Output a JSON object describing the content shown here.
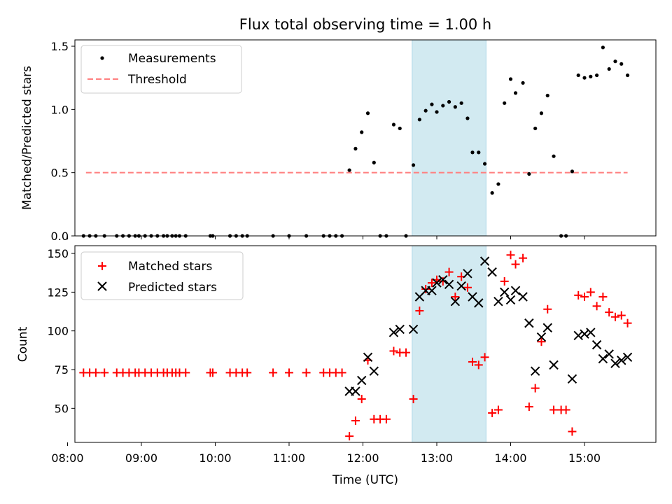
{
  "title": "Flux total observing time = 1.00 h",
  "colors": {
    "measurement": "#000000",
    "threshold": "#ff7f7f",
    "matched": "#ff0000",
    "predicted": "#000000",
    "highlight": "#add8e6"
  },
  "chart_data": [
    {
      "type": "scatter",
      "ylabel": "Matched/Predicted stars",
      "ylim": [
        0,
        1.55
      ],
      "xlim": [
        "08:06",
        "15:58"
      ],
      "yticks": [
        "0.0",
        "0.5",
        "1.0",
        "1.5"
      ],
      "legend": {
        "placement": "top-left",
        "entries": [
          "Measurements",
          "Threshold"
        ]
      },
      "highlight_span": [
        "12:40",
        "13:40"
      ],
      "threshold": {
        "value": 0.5,
        "x_range": [
          "08:15",
          "15:35"
        ]
      },
      "series": [
        {
          "name": "Measurements",
          "points": [
            [
              "08:13",
              0
            ],
            [
              "08:18",
              0
            ],
            [
              "08:23",
              0
            ],
            [
              "08:30",
              0
            ],
            [
              "08:40",
              0
            ],
            [
              "08:45",
              0
            ],
            [
              "08:50",
              0
            ],
            [
              "08:55",
              0
            ],
            [
              "08:58",
              0
            ],
            [
              "09:03",
              0
            ],
            [
              "09:08",
              0
            ],
            [
              "09:13",
              0
            ],
            [
              "09:18",
              0
            ],
            [
              "09:21",
              0
            ],
            [
              "09:25",
              0
            ],
            [
              "09:28",
              0
            ],
            [
              "09:31",
              0
            ],
            [
              "09:36",
              0
            ],
            [
              "09:56",
              0
            ],
            [
              "09:58",
              0
            ],
            [
              "10:12",
              0
            ],
            [
              "10:17",
              0
            ],
            [
              "10:22",
              0
            ],
            [
              "10:26",
              0
            ],
            [
              "10:47",
              0
            ],
            [
              "11:00",
              0
            ],
            [
              "11:14",
              0
            ],
            [
              "11:28",
              0
            ],
            [
              "11:33",
              0
            ],
            [
              "11:38",
              0
            ],
            [
              "11:43",
              0
            ],
            [
              "11:49",
              0.52
            ],
            [
              "11:54",
              0.69
            ],
            [
              "11:59",
              0.82
            ],
            [
              "12:04",
              0.97
            ],
            [
              "12:09",
              0.58
            ],
            [
              "12:14",
              0
            ],
            [
              "12:19",
              0
            ],
            [
              "12:25",
              0.88
            ],
            [
              "12:30",
              0.85
            ],
            [
              "12:35",
              0
            ],
            [
              "12:41",
              0.56
            ],
            [
              "12:46",
              0.92
            ],
            [
              "12:51",
              0.99
            ],
            [
              "12:56",
              1.04
            ],
            [
              "13:00",
              0.98
            ],
            [
              "13:05",
              1.03
            ],
            [
              "13:10",
              1.06
            ],
            [
              "13:15",
              1.02
            ],
            [
              "13:20",
              1.05
            ],
            [
              "13:25",
              0.93
            ],
            [
              "13:29",
              0.66
            ],
            [
              "13:34",
              0.66
            ],
            [
              "13:39",
              0.57
            ],
            [
              "13:45",
              0.34
            ],
            [
              "13:50",
              0.41
            ],
            [
              "13:55",
              1.05
            ],
            [
              "14:00",
              1.24
            ],
            [
              "14:04",
              1.13
            ],
            [
              "14:10",
              1.21
            ],
            [
              "14:15",
              0.49
            ],
            [
              "14:20",
              0.85
            ],
            [
              "14:25",
              0.97
            ],
            [
              "14:30",
              1.11
            ],
            [
              "14:35",
              0.63
            ],
            [
              "14:41",
              0
            ],
            [
              "14:45",
              0
            ],
            [
              "14:50",
              0.51
            ],
            [
              "14:55",
              1.27
            ],
            [
              "15:00",
              1.25
            ],
            [
              "15:05",
              1.26
            ],
            [
              "15:10",
              1.27
            ],
            [
              "15:15",
              1.49
            ],
            [
              "15:20",
              1.32
            ],
            [
              "15:25",
              1.38
            ],
            [
              "15:30",
              1.36
            ],
            [
              "15:35",
              1.27
            ]
          ]
        }
      ]
    },
    {
      "type": "scatter",
      "xlabel": "Time (UTC)",
      "ylabel": "Count",
      "ylim": [
        28,
        155
      ],
      "xlim": [
        "08:06",
        "15:58"
      ],
      "xticks": [
        "08:00",
        "09:00",
        "10:00",
        "11:00",
        "12:00",
        "13:00",
        "14:00",
        "15:00"
      ],
      "yticks": [
        "50",
        "75",
        "100",
        "125",
        "150"
      ],
      "legend": {
        "placement": "top-left",
        "entries": [
          "Matched stars",
          "Predicted stars"
        ]
      },
      "highlight_span": [
        "12:40",
        "13:40"
      ],
      "series": [
        {
          "name": "Matched stars",
          "points": [
            [
              "08:13",
              73
            ],
            [
              "08:18",
              73
            ],
            [
              "08:23",
              73
            ],
            [
              "08:30",
              73
            ],
            [
              "08:40",
              73
            ],
            [
              "08:45",
              73
            ],
            [
              "08:50",
              73
            ],
            [
              "08:55",
              73
            ],
            [
              "08:58",
              73
            ],
            [
              "09:03",
              73
            ],
            [
              "09:08",
              73
            ],
            [
              "09:13",
              73
            ],
            [
              "09:18",
              73
            ],
            [
              "09:21",
              73
            ],
            [
              "09:25",
              73
            ],
            [
              "09:28",
              73
            ],
            [
              "09:31",
              73
            ],
            [
              "09:36",
              73
            ],
            [
              "09:56",
              73
            ],
            [
              "09:58",
              73
            ],
            [
              "10:12",
              73
            ],
            [
              "10:17",
              73
            ],
            [
              "10:22",
              73
            ],
            [
              "10:26",
              73
            ],
            [
              "10:47",
              73
            ],
            [
              "11:00",
              73
            ],
            [
              "11:14",
              73
            ],
            [
              "11:28",
              73
            ],
            [
              "11:33",
              73
            ],
            [
              "11:38",
              73
            ],
            [
              "11:43",
              73
            ],
            [
              "11:49",
              32
            ],
            [
              "11:54",
              42
            ],
            [
              "11:59",
              56
            ],
            [
              "12:04",
              81
            ],
            [
              "12:09",
              43
            ],
            [
              "12:14",
              43
            ],
            [
              "12:19",
              43
            ],
            [
              "12:25",
              87
            ],
            [
              "12:30",
              86
            ],
            [
              "12:35",
              86
            ],
            [
              "12:41",
              56
            ],
            [
              "12:46",
              113
            ],
            [
              "12:51",
              127
            ],
            [
              "12:56",
              131
            ],
            [
              "13:00",
              133
            ],
            [
              "13:05",
              132
            ],
            [
              "13:10",
              138
            ],
            [
              "13:15",
              122
            ],
            [
              "13:20",
              135
            ],
            [
              "13:25",
              128
            ],
            [
              "13:29",
              80
            ],
            [
              "13:34",
              78
            ],
            [
              "13:39",
              83
            ],
            [
              "13:45",
              47
            ],
            [
              "13:50",
              49
            ],
            [
              "13:55",
              132
            ],
            [
              "14:00",
              149
            ],
            [
              "14:04",
              143
            ],
            [
              "14:10",
              147
            ],
            [
              "14:15",
              51
            ],
            [
              "14:20",
              63
            ],
            [
              "14:25",
              93
            ],
            [
              "14:30",
              114
            ],
            [
              "14:35",
              49
            ],
            [
              "14:41",
              49
            ],
            [
              "14:45",
              49
            ],
            [
              "14:50",
              35
            ],
            [
              "14:55",
              123
            ],
            [
              "15:00",
              122
            ],
            [
              "15:05",
              125
            ],
            [
              "15:10",
              116
            ],
            [
              "15:15",
              122
            ],
            [
              "15:20",
              112
            ],
            [
              "15:25",
              109
            ],
            [
              "15:30",
              110
            ],
            [
              "15:35",
              105
            ]
          ]
        },
        {
          "name": "Predicted stars",
          "points": [
            [
              "11:49",
              61
            ],
            [
              "11:54",
              61
            ],
            [
              "11:59",
              68
            ],
            [
              "12:04",
              83
            ],
            [
              "12:09",
              74
            ],
            [
              "12:25",
              99
            ],
            [
              "12:30",
              101
            ],
            [
              "12:41",
              101
            ],
            [
              "12:46",
              122
            ],
            [
              "12:51",
              126
            ],
            [
              "12:56",
              126
            ],
            [
              "13:00",
              131
            ],
            [
              "13:05",
              133
            ],
            [
              "13:10",
              130
            ],
            [
              "13:15",
              119
            ],
            [
              "13:20",
              129
            ],
            [
              "13:25",
              137
            ],
            [
              "13:29",
              122
            ],
            [
              "13:34",
              118
            ],
            [
              "13:39",
              145
            ],
            [
              "13:45",
              138
            ],
            [
              "13:50",
              119
            ],
            [
              "13:55",
              125
            ],
            [
              "14:00",
              120
            ],
            [
              "14:04",
              126
            ],
            [
              "14:10",
              122
            ],
            [
              "14:15",
              105
            ],
            [
              "14:20",
              74
            ],
            [
              "14:25",
              96
            ],
            [
              "14:30",
              102
            ],
            [
              "14:35",
              78
            ],
            [
              "14:50",
              69
            ],
            [
              "14:55",
              97
            ],
            [
              "15:00",
              98
            ],
            [
              "15:05",
              99
            ],
            [
              "15:10",
              91
            ],
            [
              "15:15",
              82
            ],
            [
              "15:20",
              85
            ],
            [
              "15:25",
              79
            ],
            [
              "15:30",
              81
            ],
            [
              "15:35",
              83
            ]
          ]
        }
      ]
    }
  ]
}
